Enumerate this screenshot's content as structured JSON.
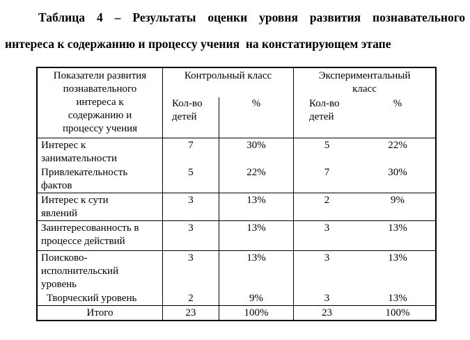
{
  "title": {
    "line1": "Таблица 4 – Результаты оценки уровня развития познавательного",
    "line2": "интереса к содержанию и процессу учения  на констатирующем этапе"
  },
  "table": {
    "header": {
      "indicator": "Показатели развития\nпознавательного\nинтереса к\nсодержанию и\nпроцессу учения",
      "control_class": "Контрольный класс",
      "experimental_class": "Экспериментальный\nкласс",
      "count_label": "Кол-во\nдетей",
      "percent_label": "%"
    },
    "rows": [
      {
        "label": "Интерес  к\nзанимательности",
        "control_count": "7",
        "control_percent": "30%",
        "exp_count": "5",
        "exp_percent": "22%"
      },
      {
        "label": "Привлекательность\nфактов",
        "control_count": "5",
        "control_percent": "22%",
        "exp_count": "7",
        "exp_percent": "30%"
      },
      {
        "label": "Интерес к сути\nявлений",
        "control_count": "3",
        "control_percent": "13%",
        "exp_count": "2",
        "exp_percent": "9%"
      },
      {
        "label": "Заинтересованность в\nпроцессе действий",
        "control_count": "3",
        "control_percent": "13%",
        "exp_count": "3",
        "exp_percent": "13%"
      },
      {
        "label": "Поисково-\nисполнительский\nуровень",
        "control_count": "3",
        "control_percent": "13%",
        "exp_count": "3",
        "exp_percent": "13%"
      },
      {
        "label": "Творческий  уровень",
        "control_count": "2",
        "control_percent": "9%",
        "exp_count": "3",
        "exp_percent": "13%"
      }
    ],
    "total": {
      "label": "Итого",
      "control_count": "23",
      "control_percent": "100%",
      "exp_count": "23",
      "exp_percent": "100%"
    }
  }
}
